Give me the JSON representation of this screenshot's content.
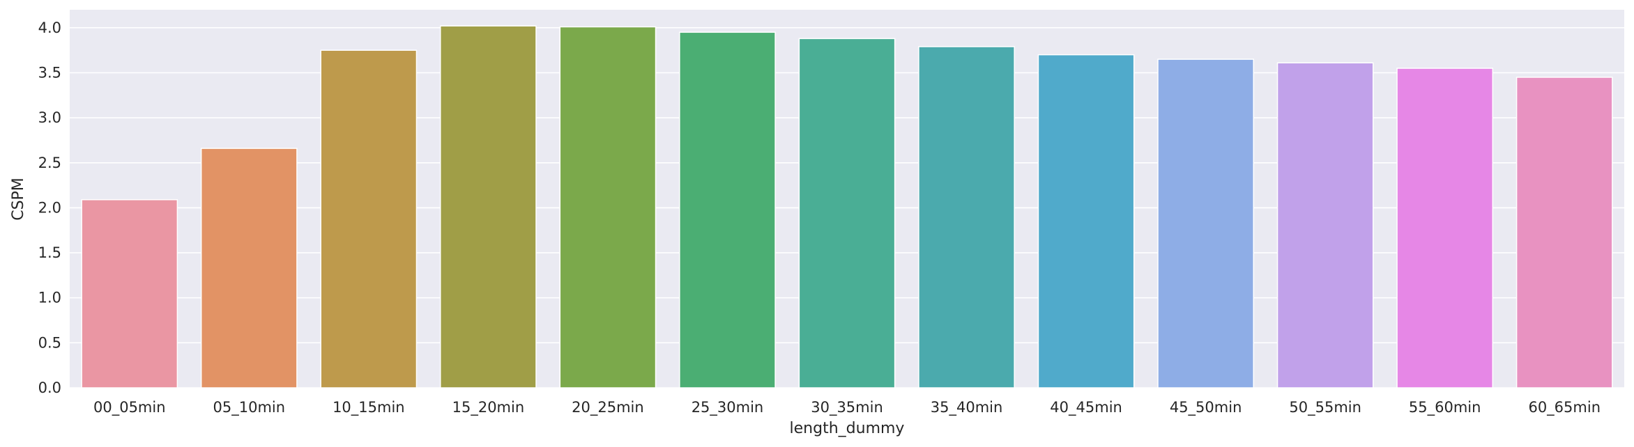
{
  "chart_data": {
    "type": "bar",
    "title": "",
    "xlabel": "length_dummy",
    "ylabel": "CSPM",
    "categories": [
      "00_05min",
      "05_10min",
      "10_15min",
      "15_20min",
      "20_25min",
      "25_30min",
      "30_35min",
      "35_40min",
      "40_45min",
      "45_50min",
      "50_55min",
      "55_60min",
      "60_65min"
    ],
    "values": [
      2.09,
      2.66,
      3.75,
      4.02,
      4.01,
      3.95,
      3.88,
      3.79,
      3.7,
      3.65,
      3.61,
      3.55,
      3.45
    ],
    "ylim": [
      0,
      4.2
    ],
    "yticks": [
      "0.0",
      "0.5",
      "1.0",
      "1.5",
      "2.0",
      "2.5",
      "3.0",
      "3.5",
      "4.0"
    ],
    "grid": true,
    "legend": "none",
    "colors": [
      "#ea96a3",
      "#e29365",
      "#be9a4c",
      "#a09e47",
      "#7ba94b",
      "#4bae73",
      "#4aae95",
      "#4baaad",
      "#50aacb",
      "#8eade6",
      "#c1a1ea",
      "#e687e6",
      "#e892c1"
    ],
    "background": "#eaeaf2"
  }
}
